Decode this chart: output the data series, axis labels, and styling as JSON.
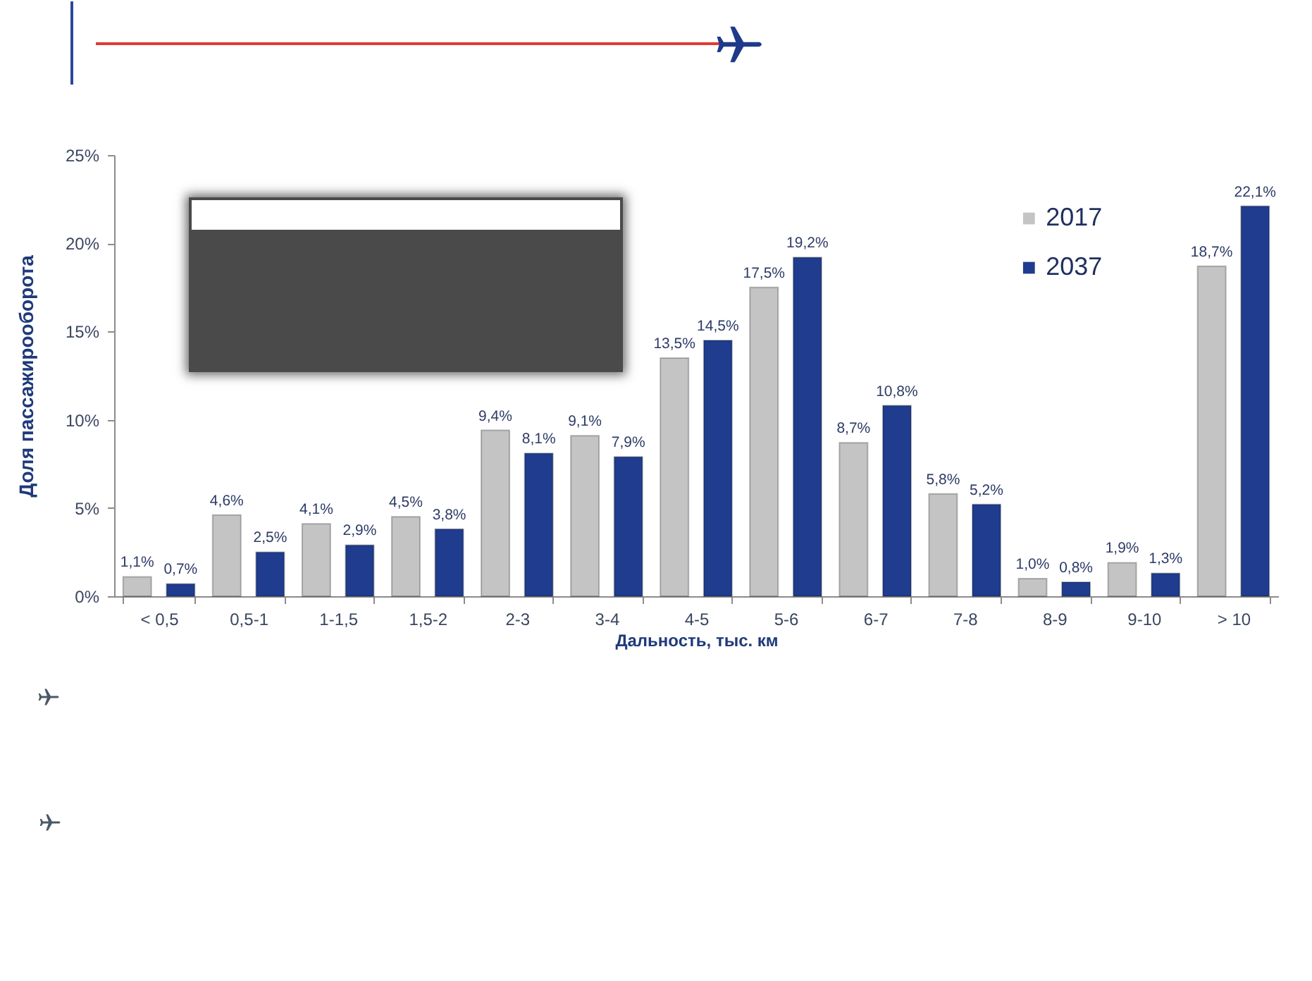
{
  "chart_data": {
    "type": "bar",
    "xlabel": "Дальность, тыс. км",
    "ylabel": "Доля пассажирооборота",
    "categories": [
      "< 0,5",
      "0,5-1",
      "1-1,5",
      "1,5-2",
      "2-3",
      "3-4",
      "4-5",
      "5-6",
      "6-7",
      "7-8",
      "8-9",
      "9-10",
      "> 10"
    ],
    "series": [
      {
        "name": "2017",
        "color": "#c4c4c4",
        "values": [
          1.1,
          4.6,
          4.1,
          4.5,
          9.4,
          9.1,
          13.5,
          17.5,
          8.7,
          5.8,
          1.0,
          1.9,
          18.7
        ],
        "value_labels": [
          "1,1%",
          "4,6%",
          "4,1%",
          "4,5%",
          "9,4%",
          "9,1%",
          "13,5%",
          "17,5%",
          "8,7%",
          "5,8%",
          "1,0%",
          "1,9%",
          "18,7%"
        ]
      },
      {
        "name": "2037",
        "color": "#1f3c8e",
        "values": [
          0.7,
          2.5,
          2.9,
          3.8,
          8.1,
          7.9,
          14.5,
          19.2,
          10.8,
          5.2,
          0.8,
          1.3,
          22.1
        ],
        "value_labels": [
          "0,7%",
          "2,5%",
          "2,9%",
          "3,8%",
          "8,1%",
          "7,9%",
          "14,5%",
          "19,2%",
          "10,8%",
          "5,2%",
          "0,8%",
          "1,3%",
          "22,1%"
        ]
      }
    ],
    "ylim": [
      0,
      25
    ],
    "yticks": [
      {
        "value": 0,
        "label": "0%"
      },
      {
        "value": 5,
        "label": "5%"
      },
      {
        "value": 10,
        "label": "10%"
      },
      {
        "value": 15,
        "label": "15%"
      },
      {
        "value": 20,
        "label": "20%"
      },
      {
        "value": 25,
        "label": "25%"
      }
    ],
    "legend": "top right"
  }
}
